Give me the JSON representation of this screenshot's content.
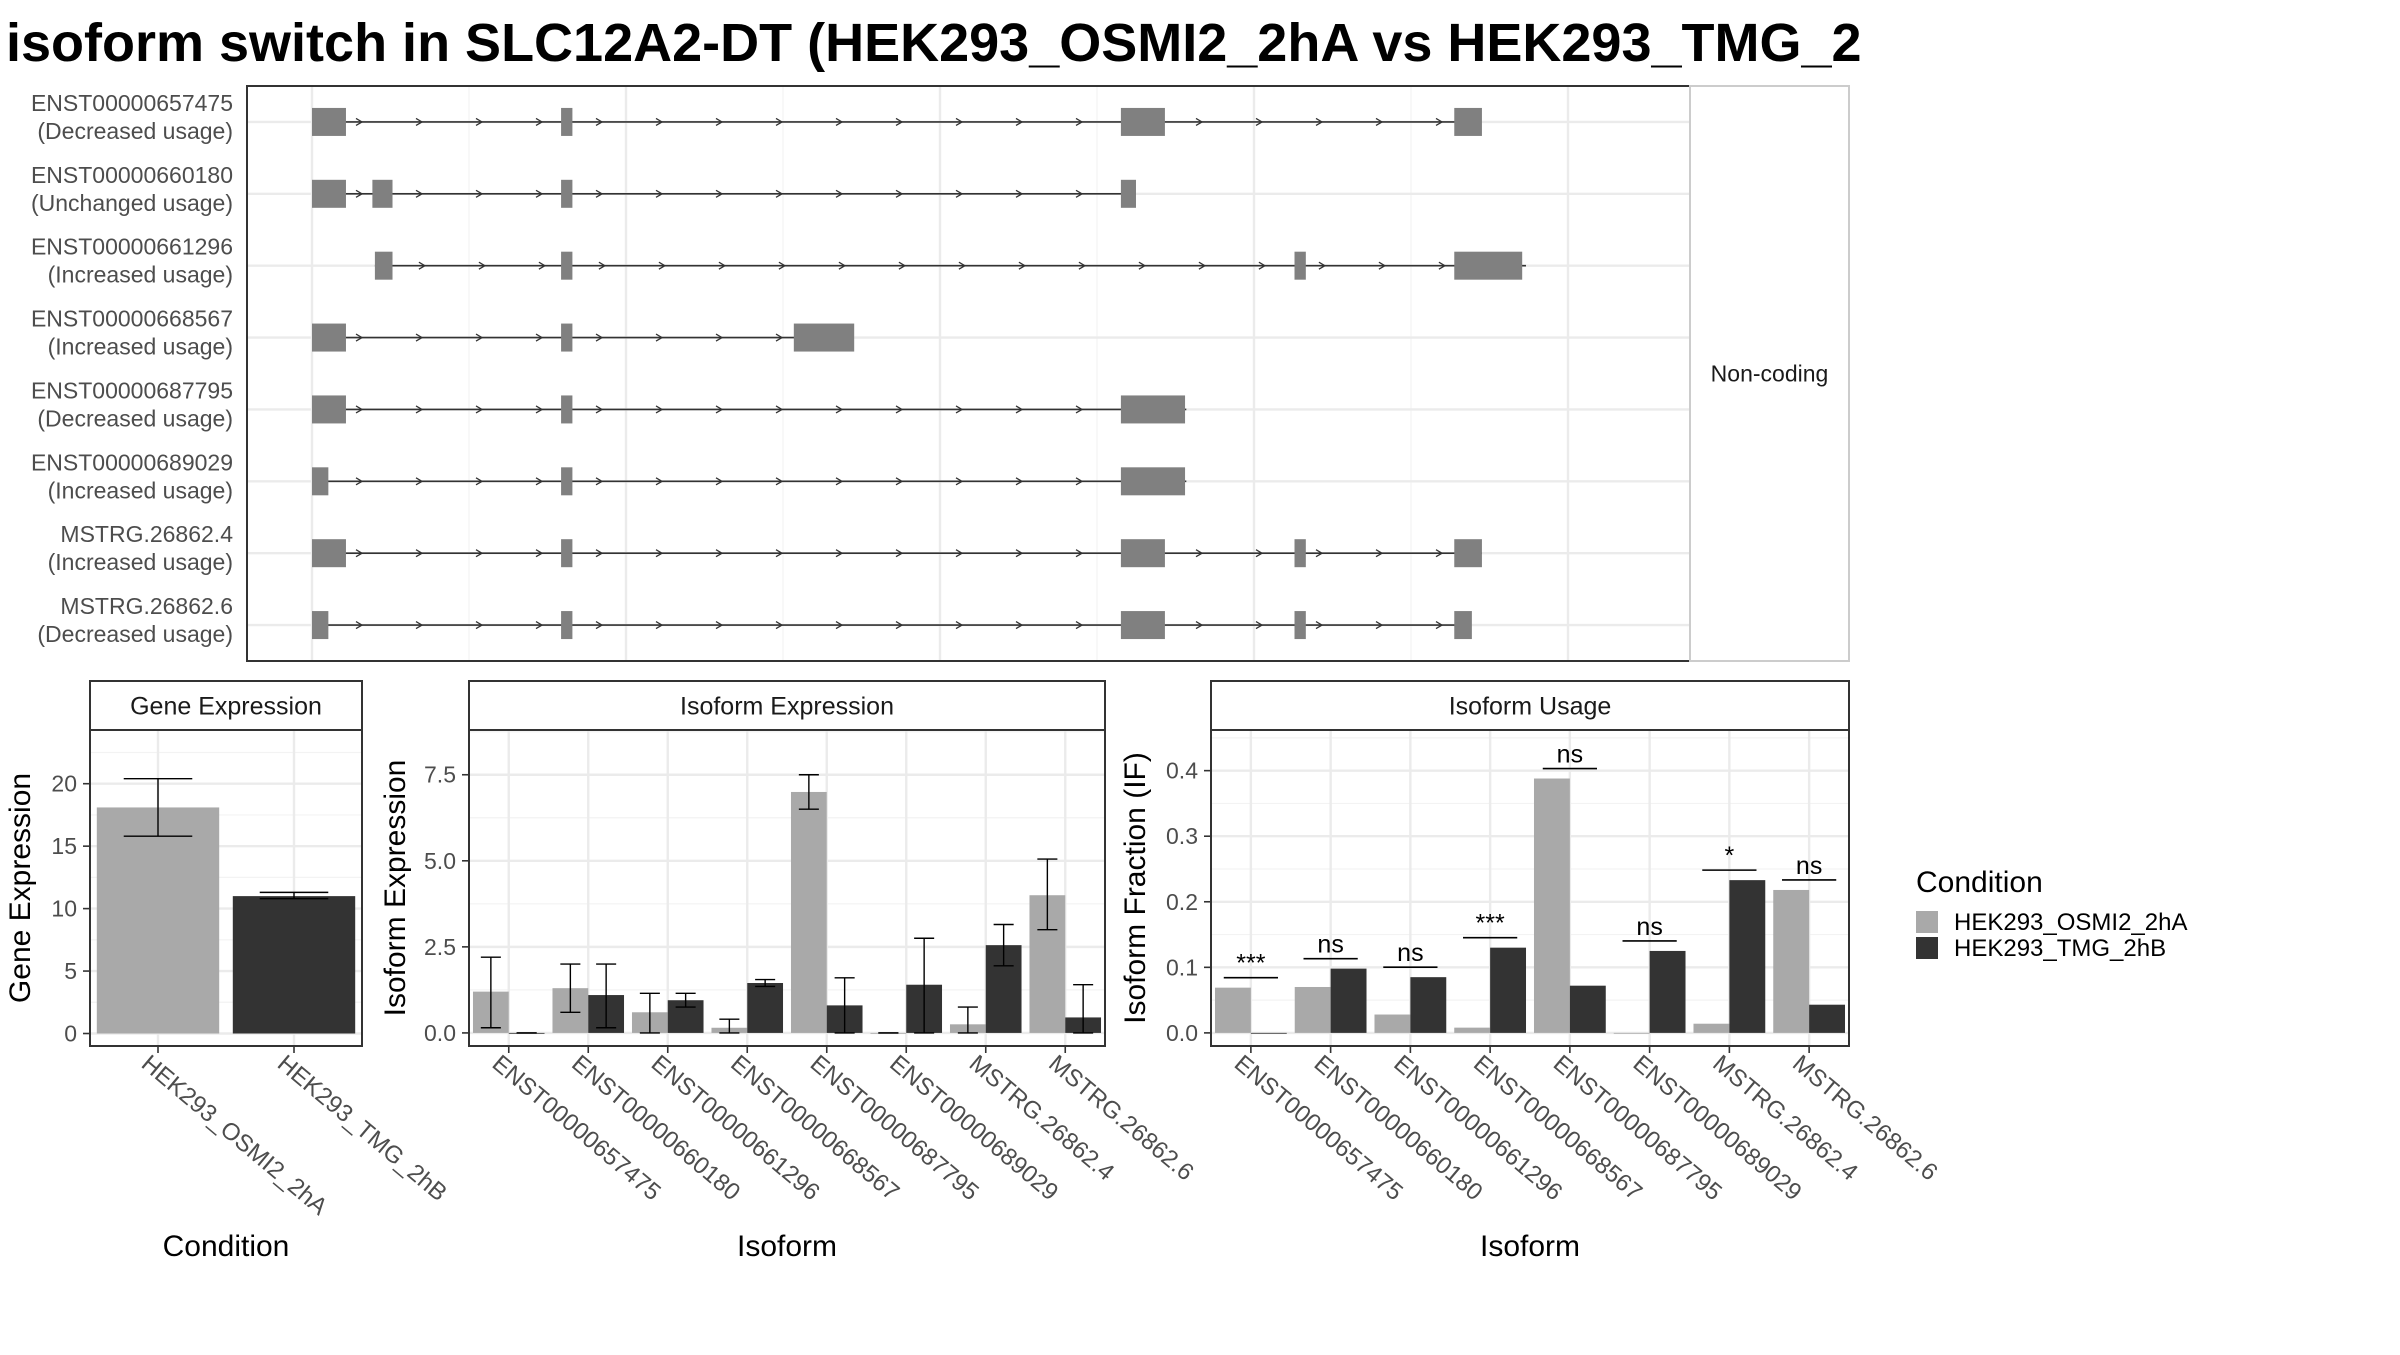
{
  "title": "isoform switch in SLC12A2-DT (HEK293_OSMI2_2hA vs HEK293_TMG_2",
  "chart_data": [
    {
      "type": "gene-structure",
      "name": "transcript-structure",
      "strip_label": "Non-coding",
      "x_range": [
        0,
        1
      ],
      "transcripts": [
        {
          "id": "ENST00000657475",
          "usage": "(Decreased usage)",
          "start": 0.0,
          "end": 0.922,
          "exons": [
            [
              0.0,
              0.027
            ],
            [
              0.198,
              0.207
            ],
            [
              0.643,
              0.678
            ],
            [
              0.908,
              0.93
            ]
          ]
        },
        {
          "id": "ENST00000660180",
          "usage": "(Unchanged usage)",
          "start": 0.0,
          "end": 0.655,
          "exons": [
            [
              0.0,
              0.027
            ],
            [
              0.048,
              0.064
            ],
            [
              0.198,
              0.207
            ],
            [
              0.643,
              0.655
            ]
          ]
        },
        {
          "id": "ENST00000661296",
          "usage": "(Increased usage)",
          "start": 0.05,
          "end": 0.965,
          "exons": [
            [
              0.05,
              0.064
            ],
            [
              0.198,
              0.207
            ],
            [
              0.781,
              0.79
            ],
            [
              0.908,
              0.962
            ]
          ]
        },
        {
          "id": "ENST00000668567",
          "usage": "(Increased usage)",
          "start": 0.0,
          "end": 0.43,
          "exons": [
            [
              0.0,
              0.027
            ],
            [
              0.198,
              0.207
            ],
            [
              0.383,
              0.431
            ]
          ]
        },
        {
          "id": "ENST00000687795",
          "usage": "(Decreased usage)",
          "start": 0.0,
          "end": 0.695,
          "exons": [
            [
              0.0,
              0.027
            ],
            [
              0.198,
              0.207
            ],
            [
              0.643,
              0.694
            ]
          ]
        },
        {
          "id": "ENST00000689029",
          "usage": "(Increased usage)",
          "start": 0.0,
          "end": 0.695,
          "exons": [
            [
              0.0,
              0.013
            ],
            [
              0.198,
              0.207
            ],
            [
              0.643,
              0.694
            ]
          ]
        },
        {
          "id": "MSTRG.26862.4",
          "usage": "(Increased usage)",
          "start": 0.0,
          "end": 0.93,
          "exons": [
            [
              0.0,
              0.027
            ],
            [
              0.198,
              0.207
            ],
            [
              0.643,
              0.678
            ],
            [
              0.781,
              0.79
            ],
            [
              0.908,
              0.93
            ]
          ]
        },
        {
          "id": "MSTRG.26862.6",
          "usage": "(Decreased usage)",
          "start": 0.0,
          "end": 0.92,
          "exons": [
            [
              0.0,
              0.013
            ],
            [
              0.198,
              0.207
            ],
            [
              0.643,
              0.678
            ],
            [
              0.781,
              0.79
            ],
            [
              0.908,
              0.922
            ]
          ]
        }
      ]
    },
    {
      "type": "bar",
      "name": "gene-expression",
      "strip_label": "Gene Expression",
      "xlabel": "Condition",
      "ylabel": "Gene Expression",
      "ylim": [
        -1,
        24.3
      ],
      "yticks": [
        0,
        5,
        10,
        15,
        20
      ],
      "categories": [
        "HEK293_OSMI2_2hA",
        "HEK293_TMG_2hB"
      ],
      "values": [
        18.1,
        11.0
      ],
      "errors": [
        [
          15.8,
          20.4
        ],
        [
          10.8,
          11.3
        ]
      ],
      "color_keys": [
        "c1",
        "c2"
      ]
    },
    {
      "type": "bar",
      "name": "isoform-expression",
      "strip_label": "Isoform Expression",
      "xlabel": "Isoform",
      "ylabel": "Isoform Expression",
      "ylim": [
        -0.38,
        8.8
      ],
      "yticks": [
        0.0,
        2.5,
        5.0,
        7.5
      ],
      "ytick_labels": [
        "0.0",
        "2.5",
        "5.0",
        "7.5"
      ],
      "categories": [
        "ENST00000657475",
        "ENST00000660180",
        "ENST00000661296",
        "ENST00000668567",
        "ENST00000687795",
        "ENST00000689029",
        "MSTRG.26862.4",
        "MSTRG.26862.6"
      ],
      "series": [
        {
          "key": "c1",
          "values": [
            1.2,
            1.3,
            0.6,
            0.15,
            7.0,
            0.0,
            0.25,
            4.0
          ],
          "errors": [
            [
              0.15,
              2.2
            ],
            [
              0.6,
              2.0
            ],
            [
              0.0,
              1.15
            ],
            [
              0.0,
              0.4
            ],
            [
              6.5,
              7.5
            ],
            [
              0,
              0
            ],
            [
              0.0,
              0.75
            ],
            [
              3.0,
              5.05
            ]
          ]
        },
        {
          "key": "c2",
          "values": [
            0.0,
            1.1,
            0.95,
            1.45,
            0.8,
            1.4,
            2.55,
            0.45
          ],
          "errors": [
            [
              0,
              0
            ],
            [
              0.15,
              2.0
            ],
            [
              0.75,
              1.15
            ],
            [
              1.35,
              1.55
            ],
            [
              0.0,
              1.6
            ],
            [
              0.0,
              2.75
            ],
            [
              1.95,
              3.15
            ],
            [
              0.0,
              1.4
            ]
          ]
        }
      ]
    },
    {
      "type": "bar",
      "name": "isoform-usage",
      "strip_label": "Isoform Usage",
      "xlabel": "Isoform",
      "ylabel": "Isoform Fraction (IF)",
      "ylim": [
        -0.02,
        0.462
      ],
      "yticks": [
        0.0,
        0.1,
        0.2,
        0.3,
        0.4
      ],
      "ytick_labels": [
        "0.0",
        "0.1",
        "0.2",
        "0.3",
        "0.4"
      ],
      "categories": [
        "ENST00000657475",
        "ENST00000660180",
        "ENST00000661296",
        "ENST00000668567",
        "ENST00000687795",
        "ENST00000689029",
        "MSTRG.26862.4",
        "MSTRG.26862.6"
      ],
      "series": [
        {
          "key": "c1",
          "values": [
            0.069,
            0.07,
            0.028,
            0.008,
            0.388,
            0.0,
            0.014,
            0.218
          ]
        },
        {
          "key": "c2",
          "values": [
            0.0,
            0.098,
            0.085,
            0.13,
            0.072,
            0.125,
            0.233,
            0.043
          ]
        }
      ],
      "significance": [
        "***",
        "ns",
        "ns",
        "***",
        "ns",
        "ns",
        "*",
        "ns"
      ]
    }
  ],
  "legend": {
    "title": "Condition",
    "entries": [
      {
        "key": "c1",
        "label": "HEK293_OSMI2_2hA"
      },
      {
        "key": "c2",
        "label": "HEK293_TMG_2hB"
      }
    ],
    "placement": "right"
  },
  "colors": {
    "c1": "#a9a9a9",
    "c2": "#333333",
    "exon": "#808080",
    "intron": "#333333",
    "grid_major": "#ebebeb",
    "grid_minor": "#f3f3f3",
    "strip_text": "#1a1a1a",
    "axis_text": "#4d4d4d"
  }
}
